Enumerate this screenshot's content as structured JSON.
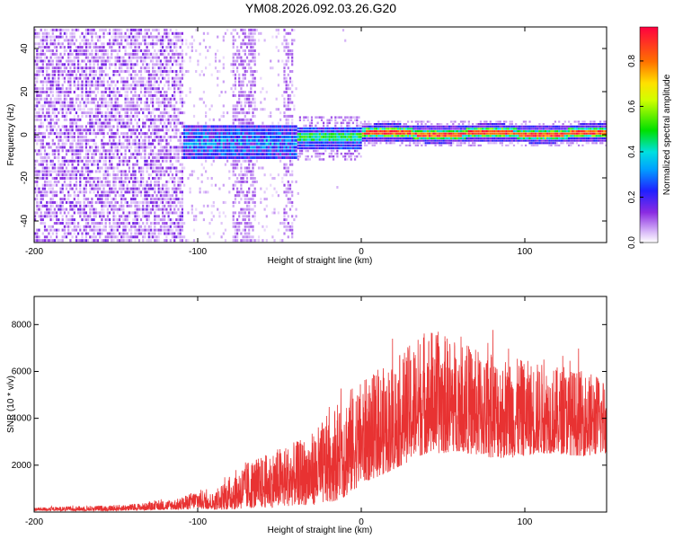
{
  "title": "YM08.2026.092.03.26.G20",
  "chart_data": [
    {
      "type": "heatmap",
      "xlabel": "Height of straight line (km)",
      "ylabel": "Frequency (Hz)",
      "xlim": [
        -200,
        150
      ],
      "ylim": [
        -50,
        50
      ],
      "xticks": [
        -200,
        -100,
        0,
        100
      ],
      "yticks": [
        -40,
        -20,
        0,
        20,
        40
      ],
      "colorbar": {
        "label": "Normalized spectral amplitude",
        "range": [
          0.0,
          0.95
        ],
        "ticks": [
          0.0,
          0.2,
          0.4,
          0.6,
          0.8
        ]
      },
      "description_regions": [
        {
          "x_range": [
            -200,
            -110
          ],
          "amplitude": 0.1,
          "spread": "full band"
        },
        {
          "x_range": [
            -110,
            -40
          ],
          "amplitude": 0.3,
          "center_hz": -3
        },
        {
          "x_range": [
            -40,
            0
          ],
          "amplitude": 0.5,
          "center_hz": -1
        },
        {
          "x_range": [
            0,
            150
          ],
          "amplitude": 0.9,
          "center_hz": 1
        }
      ]
    },
    {
      "type": "line",
      "xlabel": "Height of straight line (km)",
      "ylabel": "SNR (10 * v/v)",
      "xlim": [
        -200,
        150
      ],
      "ylim": [
        0,
        9200
      ],
      "xticks": [
        -200,
        -100,
        0,
        100
      ],
      "yticks": [
        2000,
        4000,
        6000,
        8000
      ],
      "series": [
        {
          "name": "SNR",
          "color": "#e83232",
          "envelope_x": [
            -200,
            -150,
            -130,
            -110,
            -100,
            -90,
            -80,
            -70,
            -60,
            -50,
            -40,
            -30,
            -20,
            -10,
            0,
            10,
            20,
            30,
            40,
            50,
            60,
            70,
            80,
            90,
            100,
            110,
            120,
            130,
            140,
            150
          ],
          "envelope_low": [
            50,
            50,
            80,
            100,
            150,
            100,
            100,
            150,
            200,
            200,
            300,
            300,
            400,
            600,
            1200,
            1500,
            1800,
            2200,
            2500,
            2500,
            2600,
            2400,
            2300,
            2300,
            2400,
            2500,
            2500,
            2400,
            2400,
            2500
          ],
          "envelope_high": [
            200,
            300,
            400,
            600,
            1000,
            800,
            1600,
            2200,
            2400,
            2800,
            3000,
            3400,
            4200,
            5200,
            5600,
            6000,
            6500,
            7200,
            8000,
            7600,
            7400,
            7000,
            6800,
            6600,
            6500,
            6400,
            6200,
            6100,
            6000,
            5800
          ]
        }
      ]
    }
  ]
}
